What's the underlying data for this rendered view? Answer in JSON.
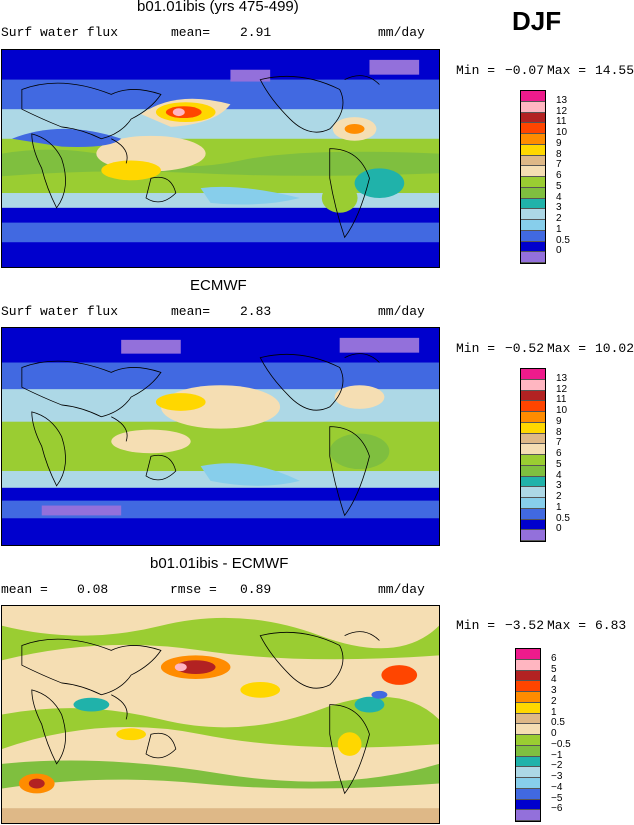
{
  "season": "DJF",
  "panels": [
    {
      "title": "b01.01ibis (yrs 475-499)",
      "left_label": "Surf water flux",
      "mean_label": "mean=",
      "mean_value": "2.91",
      "units": "mm/day",
      "min_label": "Min =",
      "min_value": "−0.07",
      "max_label": "Max =",
      "max_value": "14.55",
      "levels": [
        "13",
        "12",
        "11",
        "10",
        "9",
        "8",
        "7",
        "6",
        "5",
        "4",
        "3",
        "2",
        "1",
        "0.5",
        "0"
      ],
      "colors": [
        "#ee1b8c",
        "#ffb6c1",
        "#b22222",
        "#ff4500",
        "#ff8c00",
        "#ffd700",
        "#deb887",
        "#f5deb3",
        "#9acd32",
        "#7fbf3f",
        "#20b2aa",
        "#add8e6",
        "#87ceeb",
        "#4169e1",
        "#0000cd",
        "#9370db"
      ]
    },
    {
      "title": "ECMWF",
      "left_label": "Surf water flux",
      "mean_label": "mean=",
      "mean_value": "2.83",
      "units": "mm/day",
      "min_label": "Min =",
      "min_value": "−0.52",
      "max_label": "Max =",
      "max_value": "10.02",
      "levels": [
        "13",
        "12",
        "11",
        "10",
        "9",
        "8",
        "7",
        "6",
        "5",
        "4",
        "3",
        "2",
        "1",
        "0.5",
        "0"
      ],
      "colors": [
        "#ee1b8c",
        "#ffb6c1",
        "#b22222",
        "#ff4500",
        "#ff8c00",
        "#ffd700",
        "#deb887",
        "#f5deb3",
        "#9acd32",
        "#7fbf3f",
        "#20b2aa",
        "#add8e6",
        "#87ceeb",
        "#4169e1",
        "#0000cd",
        "#9370db"
      ]
    },
    {
      "title": "b01.01ibis - ECMWF",
      "mean_label": "mean =",
      "mean_value": "0.08",
      "rmse_label": "rmse =",
      "rmse_value": "0.89",
      "units": "mm/day",
      "min_label": "Min =",
      "min_value": "−3.52",
      "max_label": "Max =",
      "max_value": "6.83",
      "levels": [
        "6",
        "5",
        "4",
        "3",
        "2",
        "1",
        "0.5",
        "0",
        "−0.5",
        "−1",
        "−2",
        "−3",
        "−4",
        "−5",
        "−6"
      ],
      "colors": [
        "#ee1b8c",
        "#ffb6c1",
        "#b22222",
        "#ff4500",
        "#ff8c00",
        "#ffd700",
        "#deb887",
        "#f5deb3",
        "#9acd32",
        "#7fbf3f",
        "#20b2aa",
        "#add8e6",
        "#87ceeb",
        "#4169e1",
        "#0000cd",
        "#9370db"
      ]
    }
  ]
}
